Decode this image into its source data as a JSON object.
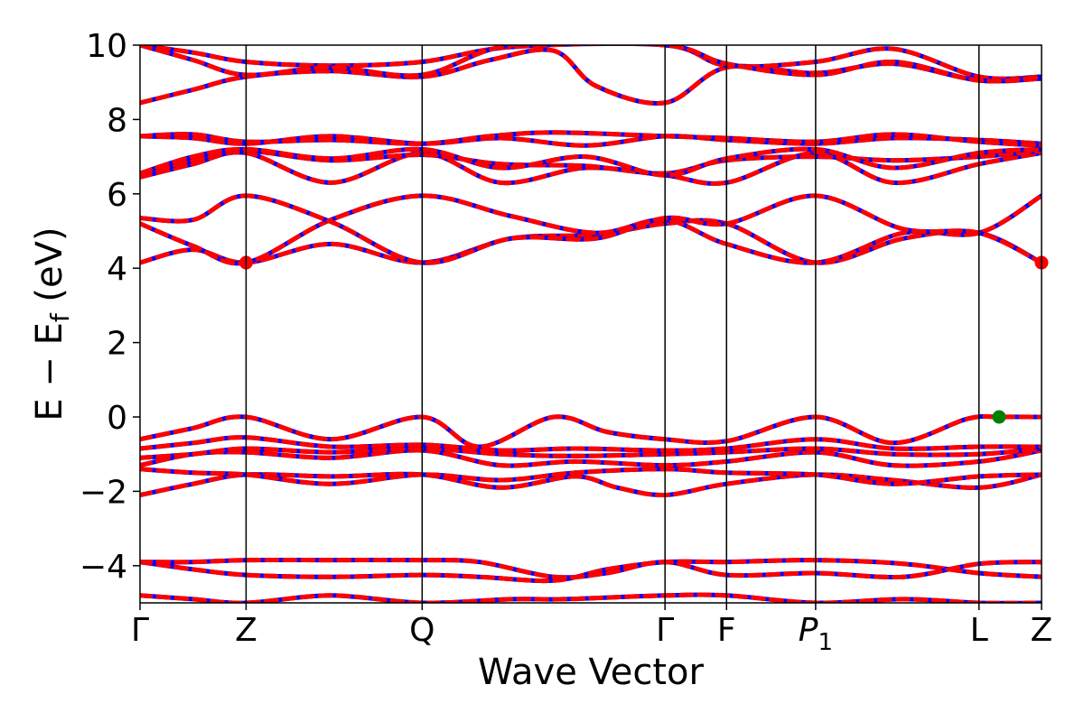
{
  "chart_data": {
    "type": "line",
    "title": "",
    "xlabel": "Wave Vector",
    "ylabel": "E − E",
    "ylabel_sub": "f",
    "ylabel_unit": " (eV)",
    "ylim": [
      -5,
      10
    ],
    "yticks": [
      -4,
      -2,
      0,
      2,
      4,
      6,
      8,
      10
    ],
    "ytick_labels": [
      "−4",
      "−2",
      "0",
      "2",
      "4",
      "6",
      "8",
      "10"
    ],
    "xlim": [
      0,
      8.5
    ],
    "kpoints": [
      {
        "label": "Γ",
        "sub": "",
        "x": 0.0
      },
      {
        "label": "Z",
        "sub": "",
        "x": 1.0
      },
      {
        "label": "Q",
        "sub": "",
        "x": 2.66
      },
      {
        "label": "Γ",
        "sub": "",
        "x": 4.95
      },
      {
        "label": "F",
        "sub": "",
        "x": 5.53
      },
      {
        "label": "P",
        "sub": "1",
        "x": 6.37
      },
      {
        "label": "L",
        "sub": "",
        "x": 7.91
      },
      {
        "label": "Z",
        "sub": "",
        "x": 8.5
      }
    ],
    "grid": false,
    "legend": "none",
    "colors": {
      "spin_up": "#0000ff",
      "spin_down": "#ff0000",
      "cbm": "#ff0000",
      "vbm": "#008000"
    },
    "series": [
      {
        "x": [
          0,
          0.5,
          1.0,
          1.8,
          2.66,
          3.5,
          4.0,
          4.95,
          5.53,
          6.37,
          7.2,
          7.91,
          8.5
        ],
        "y": [
          -4.8,
          -4.9,
          -5.0,
          -4.8,
          -5.0,
          -4.9,
          -4.9,
          -4.8,
          -4.8,
          -5.0,
          -4.9,
          -5.0,
          -5.0
        ]
      },
      {
        "x": [
          0,
          0.5,
          1.0,
          1.8,
          2.66,
          3.2,
          3.9,
          4.4,
          4.95,
          5.53,
          6.37,
          7.2,
          7.91,
          8.5
        ],
        "y": [
          -3.9,
          -4.1,
          -4.25,
          -4.3,
          -4.25,
          -4.3,
          -4.4,
          -4.1,
          -3.9,
          -3.9,
          -3.85,
          -3.95,
          -4.2,
          -4.3
        ]
      },
      {
        "x": [
          0,
          0.5,
          1.0,
          1.8,
          2.66,
          3.2,
          3.9,
          4.4,
          4.95,
          5.53,
          6.37,
          7.2,
          7.91,
          8.5
        ],
        "y": [
          -3.9,
          -3.9,
          -3.85,
          -3.85,
          -3.85,
          -3.9,
          -4.3,
          -4.2,
          -3.9,
          -4.25,
          -4.2,
          -4.3,
          -3.95,
          -3.9
        ]
      },
      {
        "x": [
          0,
          0.5,
          1.0,
          1.8,
          2.66,
          3.4,
          4.1,
          4.5,
          4.95,
          5.53,
          6.37,
          7.1,
          7.91,
          8.5
        ],
        "y": [
          -2.1,
          -1.8,
          -1.55,
          -1.6,
          -1.55,
          -1.9,
          -1.6,
          -1.9,
          -2.1,
          -1.8,
          -1.55,
          -1.7,
          -1.9,
          -1.55
        ]
      },
      {
        "x": [
          0,
          0.5,
          1.0,
          1.8,
          2.66,
          3.4,
          4.1,
          4.95,
          5.53,
          6.37,
          7.1,
          7.91,
          8.5
        ],
        "y": [
          -1.4,
          -1.5,
          -1.55,
          -1.8,
          -1.55,
          -1.7,
          -1.5,
          -1.4,
          -1.5,
          -1.55,
          -1.8,
          -1.6,
          -1.55
        ]
      },
      {
        "x": [
          0,
          0.5,
          1.0,
          1.8,
          2.66,
          3.4,
          4.1,
          4.95,
          5.53,
          6.37,
          7.1,
          7.91,
          8.5
        ],
        "y": [
          -1.3,
          -1.0,
          -0.95,
          -1.1,
          -0.9,
          -1.3,
          -1.2,
          -1.3,
          -1.2,
          -0.95,
          -1.3,
          -1.2,
          -0.9
        ]
      },
      {
        "x": [
          0,
          0.5,
          1.0,
          1.8,
          2.66,
          3.4,
          4.1,
          4.95,
          5.53,
          6.37,
          7.1,
          7.91,
          8.5
        ],
        "y": [
          -1.1,
          -1.0,
          -0.85,
          -0.95,
          -0.85,
          -1.0,
          -1.05,
          -1.0,
          -0.95,
          -0.85,
          -1.0,
          -1.0,
          -0.85
        ]
      },
      {
        "x": [
          0,
          0.5,
          1.0,
          1.8,
          2.66,
          3.4,
          4.1,
          4.95,
          5.53,
          6.37,
          7.1,
          7.91,
          8.5
        ],
        "y": [
          -0.85,
          -0.7,
          -0.55,
          -0.8,
          -0.75,
          -0.9,
          -0.85,
          -0.9,
          -0.85,
          -0.6,
          -0.85,
          -0.8,
          -0.8
        ]
      },
      {
        "x": [
          0,
          0.5,
          1.0,
          1.8,
          2.66,
          3.2,
          3.9,
          4.4,
          4.95,
          5.53,
          6.37,
          7.1,
          7.8,
          8.1,
          8.5
        ],
        "y": [
          -0.6,
          -0.3,
          0.0,
          -0.6,
          0.0,
          -0.8,
          0.0,
          -0.4,
          -0.6,
          -0.65,
          0.0,
          -0.7,
          -0.05,
          0.0,
          0.0
        ]
      },
      {
        "x": [
          0,
          0.5,
          1.0,
          1.8,
          2.66,
          3.5,
          4.3,
          4.95,
          5.53,
          6.37,
          7.2,
          7.91,
          8.5
        ],
        "y": [
          4.15,
          4.5,
          4.15,
          4.65,
          4.15,
          4.8,
          4.9,
          5.2,
          5.2,
          4.15,
          4.8,
          4.95,
          4.15
        ]
      },
      {
        "x": [
          0,
          0.5,
          1.0,
          1.8,
          2.66,
          3.5,
          4.3,
          4.95,
          5.53,
          6.37,
          7.2,
          7.91,
          8.5
        ],
        "y": [
          5.2,
          4.6,
          4.15,
          5.3,
          5.95,
          5.4,
          4.95,
          5.3,
          4.65,
          4.15,
          4.95,
          4.95,
          5.95
        ]
      },
      {
        "x": [
          0,
          0.5,
          1.0,
          1.8,
          2.66,
          3.5,
          4.3,
          4.95,
          5.53,
          6.37,
          7.2,
          7.91,
          8.5
        ],
        "y": [
          5.35,
          5.3,
          5.95,
          5.25,
          4.15,
          4.8,
          4.8,
          5.35,
          5.2,
          5.95,
          5.05,
          4.95,
          4.15
        ]
      },
      {
        "x": [
          0,
          0.5,
          1.0,
          1.8,
          2.66,
          3.4,
          4.2,
          4.95,
          5.53,
          6.37,
          7.1,
          7.91,
          8.5
        ],
        "y": [
          6.45,
          6.8,
          7.1,
          6.3,
          7.1,
          6.3,
          6.7,
          6.5,
          6.3,
          7.1,
          6.3,
          6.8,
          7.1
        ]
      },
      {
        "x": [
          0,
          0.5,
          1.0,
          1.8,
          2.66,
          3.4,
          4.2,
          4.95,
          5.53,
          6.37,
          7.1,
          7.91,
          8.5
        ],
        "y": [
          6.5,
          6.9,
          7.15,
          6.9,
          7.05,
          6.8,
          6.75,
          6.55,
          6.9,
          7.0,
          6.9,
          7.0,
          7.15
        ]
      },
      {
        "x": [
          0,
          0.5,
          1.0,
          1.8,
          2.66,
          3.4,
          4.2,
          4.95,
          5.53,
          6.37,
          7.1,
          7.91,
          8.5
        ],
        "y": [
          6.55,
          7.0,
          7.2,
          6.95,
          7.2,
          6.7,
          7.0,
          6.5,
          6.95,
          7.2,
          6.7,
          7.1,
          7.2
        ]
      },
      {
        "x": [
          0,
          0.5,
          1.0,
          1.8,
          2.66,
          3.4,
          4.2,
          4.95,
          5.53,
          6.37,
          7.1,
          7.91,
          8.5
        ],
        "y": [
          7.55,
          7.5,
          7.35,
          7.55,
          7.35,
          7.5,
          7.3,
          7.55,
          7.45,
          7.35,
          7.5,
          7.45,
          7.35
        ]
      },
      {
        "x": [
          0,
          0.5,
          1.0,
          1.8,
          2.66,
          3.3,
          3.9,
          4.95,
          5.53,
          6.37,
          7.1,
          7.91,
          8.5
        ],
        "y": [
          7.55,
          7.6,
          7.4,
          7.45,
          7.35,
          7.55,
          7.65,
          7.55,
          7.5,
          7.4,
          7.6,
          7.4,
          7.3
        ]
      },
      {
        "x": [
          0,
          0.5,
          1.0,
          1.8,
          2.66,
          3.3,
          3.9,
          4.3,
          4.95,
          5.53,
          6.37,
          7.1,
          7.91,
          8.5
        ],
        "y": [
          8.45,
          8.8,
          9.15,
          9.3,
          9.15,
          9.6,
          9.85,
          8.9,
          8.45,
          9.4,
          9.25,
          9.5,
          9.05,
          9.1
        ]
      },
      {
        "x": [
          0,
          0.5,
          1.0,
          1.8,
          2.66,
          3.5,
          4.95,
          5.53,
          6.37,
          7.1,
          7.91,
          8.5
        ],
        "y": [
          10.0,
          9.8,
          9.55,
          9.45,
          9.55,
          9.95,
          10.0,
          9.45,
          9.55,
          9.9,
          9.15,
          9.15
        ]
      },
      {
        "x": [
          0,
          0.5,
          1.0,
          1.8,
          2.66,
          3.5,
          4.95,
          5.53,
          6.37,
          7.1,
          7.91,
          8.5
        ],
        "y": [
          10.0,
          9.6,
          9.2,
          9.4,
          9.2,
          10.0,
          10.0,
          9.5,
          9.2,
          9.55,
          9.05,
          9.15
        ]
      }
    ],
    "markers": [
      {
        "name": "CBM",
        "x": 1.0,
        "y": 4.15
      },
      {
        "name": "CBM",
        "x": 8.5,
        "y": 4.15
      },
      {
        "name": "VBM",
        "x": 8.1,
        "y": 0.0
      }
    ]
  }
}
